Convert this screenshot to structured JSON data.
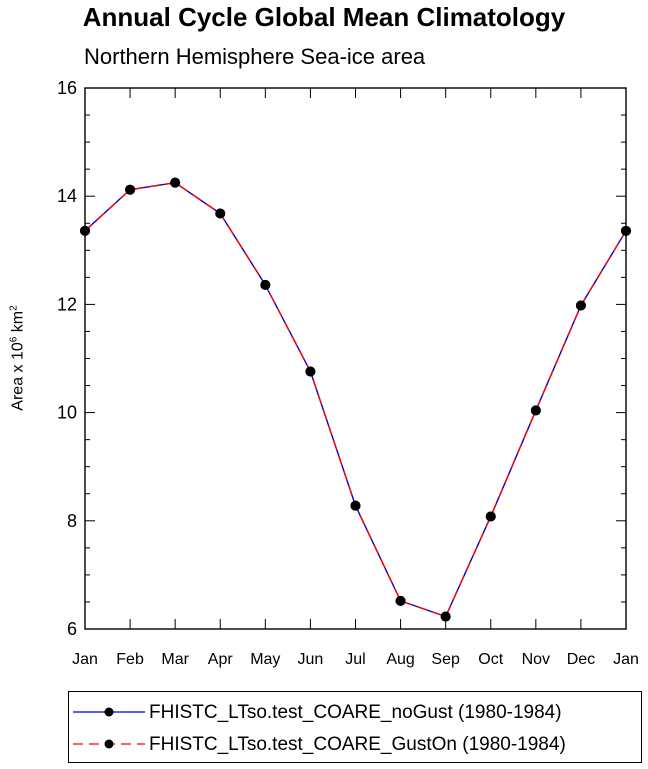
{
  "chart_data": {
    "type": "line",
    "title": "Annual Cycle Global Mean Climatology",
    "subtitle": "Northern Hemisphere Sea-ice area",
    "xlabel": "",
    "ylabel": "Area x 10",
    "ylabel_sup1": "6",
    "ylabel_unit": " km",
    "ylabel_sup2": "2",
    "categories": [
      "Jan",
      "Feb",
      "Mar",
      "Apr",
      "May",
      "Jun",
      "Jul",
      "Aug",
      "Sep",
      "Oct",
      "Nov",
      "Dec",
      "Jan"
    ],
    "yticks": [
      "6",
      "8",
      "10",
      "12",
      "14",
      "16"
    ],
    "ylim": [
      6,
      16
    ],
    "grid": false,
    "legend_position": "bottom",
    "series": [
      {
        "name": "FHISTC_LTso.test_COARE_noGust (1980-1984)",
        "color": "#0000cc",
        "style": "solid",
        "values": [
          13.36,
          14.12,
          14.25,
          13.68,
          12.36,
          10.76,
          8.28,
          6.52,
          6.23,
          8.08,
          10.04,
          11.98,
          13.36
        ]
      },
      {
        "name": "FHISTC_LTso.test_COARE_GustOn (1980-1984)",
        "color": "#ff0000",
        "style": "dashed",
        "values": [
          13.36,
          14.12,
          14.25,
          13.68,
          12.36,
          10.76,
          8.28,
          6.52,
          6.23,
          8.08,
          10.04,
          11.98,
          13.36
        ]
      }
    ]
  }
}
